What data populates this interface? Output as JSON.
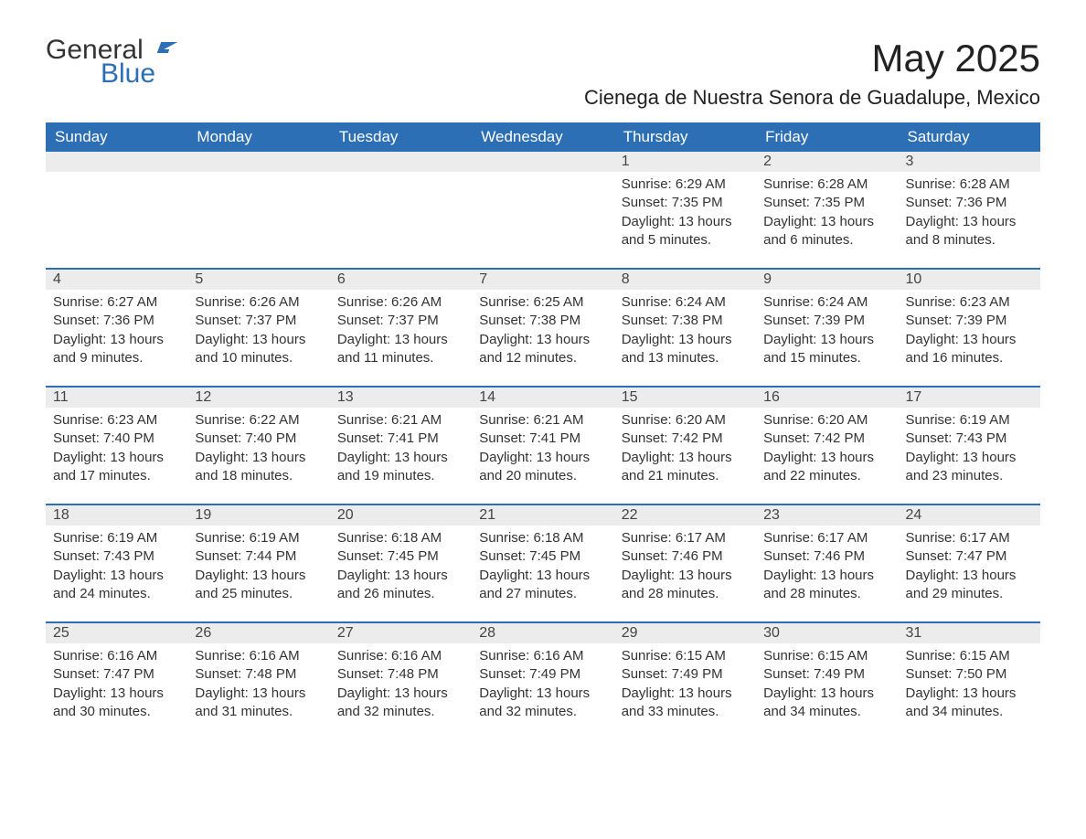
{
  "logo": {
    "text1": "General",
    "text2": "Blue"
  },
  "title": "May 2025",
  "location": "Cienega de Nuestra Senora de Guadalupe, Mexico",
  "colors": {
    "header_bg": "#2d6fb5",
    "header_fg": "#ffffff",
    "daynum_bg": "#ececec",
    "row_border": "#2d6fb5",
    "text": "#333333",
    "background": "#ffffff"
  },
  "weekdays": [
    "Sunday",
    "Monday",
    "Tuesday",
    "Wednesday",
    "Thursday",
    "Friday",
    "Saturday"
  ],
  "weeks": [
    [
      null,
      null,
      null,
      null,
      {
        "n": "1",
        "sr": "Sunrise: 6:29 AM",
        "ss": "Sunset: 7:35 PM",
        "dl": "Daylight: 13 hours and 5 minutes."
      },
      {
        "n": "2",
        "sr": "Sunrise: 6:28 AM",
        "ss": "Sunset: 7:35 PM",
        "dl": "Daylight: 13 hours and 6 minutes."
      },
      {
        "n": "3",
        "sr": "Sunrise: 6:28 AM",
        "ss": "Sunset: 7:36 PM",
        "dl": "Daylight: 13 hours and 8 minutes."
      }
    ],
    [
      {
        "n": "4",
        "sr": "Sunrise: 6:27 AM",
        "ss": "Sunset: 7:36 PM",
        "dl": "Daylight: 13 hours and 9 minutes."
      },
      {
        "n": "5",
        "sr": "Sunrise: 6:26 AM",
        "ss": "Sunset: 7:37 PM",
        "dl": "Daylight: 13 hours and 10 minutes."
      },
      {
        "n": "6",
        "sr": "Sunrise: 6:26 AM",
        "ss": "Sunset: 7:37 PM",
        "dl": "Daylight: 13 hours and 11 minutes."
      },
      {
        "n": "7",
        "sr": "Sunrise: 6:25 AM",
        "ss": "Sunset: 7:38 PM",
        "dl": "Daylight: 13 hours and 12 minutes."
      },
      {
        "n": "8",
        "sr": "Sunrise: 6:24 AM",
        "ss": "Sunset: 7:38 PM",
        "dl": "Daylight: 13 hours and 13 minutes."
      },
      {
        "n": "9",
        "sr": "Sunrise: 6:24 AM",
        "ss": "Sunset: 7:39 PM",
        "dl": "Daylight: 13 hours and 15 minutes."
      },
      {
        "n": "10",
        "sr": "Sunrise: 6:23 AM",
        "ss": "Sunset: 7:39 PM",
        "dl": "Daylight: 13 hours and 16 minutes."
      }
    ],
    [
      {
        "n": "11",
        "sr": "Sunrise: 6:23 AM",
        "ss": "Sunset: 7:40 PM",
        "dl": "Daylight: 13 hours and 17 minutes."
      },
      {
        "n": "12",
        "sr": "Sunrise: 6:22 AM",
        "ss": "Sunset: 7:40 PM",
        "dl": "Daylight: 13 hours and 18 minutes."
      },
      {
        "n": "13",
        "sr": "Sunrise: 6:21 AM",
        "ss": "Sunset: 7:41 PM",
        "dl": "Daylight: 13 hours and 19 minutes."
      },
      {
        "n": "14",
        "sr": "Sunrise: 6:21 AM",
        "ss": "Sunset: 7:41 PM",
        "dl": "Daylight: 13 hours and 20 minutes."
      },
      {
        "n": "15",
        "sr": "Sunrise: 6:20 AM",
        "ss": "Sunset: 7:42 PM",
        "dl": "Daylight: 13 hours and 21 minutes."
      },
      {
        "n": "16",
        "sr": "Sunrise: 6:20 AM",
        "ss": "Sunset: 7:42 PM",
        "dl": "Daylight: 13 hours and 22 minutes."
      },
      {
        "n": "17",
        "sr": "Sunrise: 6:19 AM",
        "ss": "Sunset: 7:43 PM",
        "dl": "Daylight: 13 hours and 23 minutes."
      }
    ],
    [
      {
        "n": "18",
        "sr": "Sunrise: 6:19 AM",
        "ss": "Sunset: 7:43 PM",
        "dl": "Daylight: 13 hours and 24 minutes."
      },
      {
        "n": "19",
        "sr": "Sunrise: 6:19 AM",
        "ss": "Sunset: 7:44 PM",
        "dl": "Daylight: 13 hours and 25 minutes."
      },
      {
        "n": "20",
        "sr": "Sunrise: 6:18 AM",
        "ss": "Sunset: 7:45 PM",
        "dl": "Daylight: 13 hours and 26 minutes."
      },
      {
        "n": "21",
        "sr": "Sunrise: 6:18 AM",
        "ss": "Sunset: 7:45 PM",
        "dl": "Daylight: 13 hours and 27 minutes."
      },
      {
        "n": "22",
        "sr": "Sunrise: 6:17 AM",
        "ss": "Sunset: 7:46 PM",
        "dl": "Daylight: 13 hours and 28 minutes."
      },
      {
        "n": "23",
        "sr": "Sunrise: 6:17 AM",
        "ss": "Sunset: 7:46 PM",
        "dl": "Daylight: 13 hours and 28 minutes."
      },
      {
        "n": "24",
        "sr": "Sunrise: 6:17 AM",
        "ss": "Sunset: 7:47 PM",
        "dl": "Daylight: 13 hours and 29 minutes."
      }
    ],
    [
      {
        "n": "25",
        "sr": "Sunrise: 6:16 AM",
        "ss": "Sunset: 7:47 PM",
        "dl": "Daylight: 13 hours and 30 minutes."
      },
      {
        "n": "26",
        "sr": "Sunrise: 6:16 AM",
        "ss": "Sunset: 7:48 PM",
        "dl": "Daylight: 13 hours and 31 minutes."
      },
      {
        "n": "27",
        "sr": "Sunrise: 6:16 AM",
        "ss": "Sunset: 7:48 PM",
        "dl": "Daylight: 13 hours and 32 minutes."
      },
      {
        "n": "28",
        "sr": "Sunrise: 6:16 AM",
        "ss": "Sunset: 7:49 PM",
        "dl": "Daylight: 13 hours and 32 minutes."
      },
      {
        "n": "29",
        "sr": "Sunrise: 6:15 AM",
        "ss": "Sunset: 7:49 PM",
        "dl": "Daylight: 13 hours and 33 minutes."
      },
      {
        "n": "30",
        "sr": "Sunrise: 6:15 AM",
        "ss": "Sunset: 7:49 PM",
        "dl": "Daylight: 13 hours and 34 minutes."
      },
      {
        "n": "31",
        "sr": "Sunrise: 6:15 AM",
        "ss": "Sunset: 7:50 PM",
        "dl": "Daylight: 13 hours and 34 minutes."
      }
    ]
  ]
}
